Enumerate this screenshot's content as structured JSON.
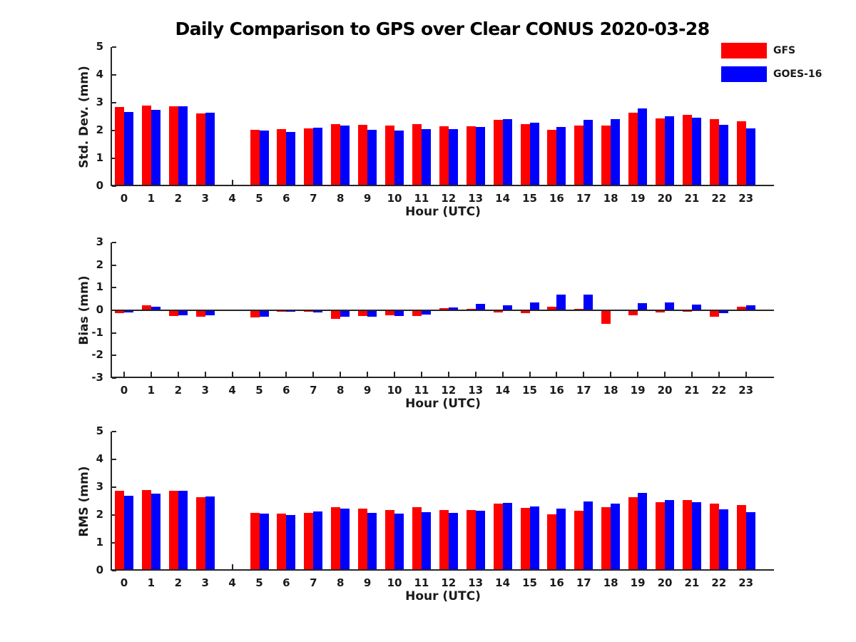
{
  "title": "Daily Comparison to GPS over Clear CONUS 2020-03-28",
  "legend": [
    {
      "label": "GFS",
      "color": "#ff0000"
    },
    {
      "label": "GOES-16",
      "color": "#0000ff"
    }
  ],
  "colors": {
    "axis": "#262626",
    "text": "#1a1a1a",
    "background": "#ffffff"
  },
  "chart_data": [
    {
      "type": "bar",
      "panel": "std_dev",
      "title": "",
      "xlabel": "Hour (UTC)",
      "ylabel": "Std. Dev. (mm)",
      "ylim": [
        0,
        5
      ],
      "yticks": [
        0,
        1,
        2,
        3,
        4,
        5
      ],
      "grid": false,
      "legend_position": "top-right",
      "categories": [
        0,
        1,
        2,
        3,
        4,
        5,
        6,
        7,
        8,
        9,
        10,
        11,
        12,
        13,
        14,
        15,
        16,
        17,
        18,
        19,
        20,
        21,
        22,
        23
      ],
      "series": [
        {
          "name": "GFS",
          "color": "#ff0000",
          "values": [
            2.85,
            2.9,
            2.87,
            2.61,
            null,
            2.03,
            2.04,
            2.08,
            2.24,
            2.2,
            2.18,
            2.24,
            2.16,
            2.16,
            2.38,
            2.24,
            2.02,
            2.18,
            2.18,
            2.63,
            2.43,
            2.56,
            2.41,
            2.34
          ]
        },
        {
          "name": "GOES-16",
          "color": "#0000ff",
          "values": [
            2.67,
            2.75,
            2.87,
            2.65,
            null,
            2.01,
            1.96,
            2.11,
            2.19,
            2.03,
            2.0,
            2.05,
            2.06,
            2.14,
            2.41,
            2.29,
            2.12,
            2.39,
            2.41,
            2.79,
            2.52,
            2.47,
            2.21,
            2.07
          ]
        }
      ]
    },
    {
      "type": "bar",
      "panel": "bias",
      "title": "",
      "xlabel": "Hour (UTC)",
      "ylabel": "Bias (mm)",
      "ylim": [
        -3,
        3
      ],
      "yticks": [
        -3,
        -2,
        -1,
        0,
        1,
        2,
        3
      ],
      "grid": false,
      "categories": [
        0,
        1,
        2,
        3,
        4,
        5,
        6,
        7,
        8,
        9,
        10,
        11,
        12,
        13,
        14,
        15,
        16,
        17,
        18,
        19,
        20,
        21,
        22,
        23
      ],
      "series": [
        {
          "name": "GFS",
          "color": "#ff0000",
          "values": [
            -0.12,
            0.21,
            -0.26,
            -0.28,
            null,
            -0.32,
            -0.07,
            -0.05,
            -0.37,
            -0.25,
            -0.23,
            -0.24,
            0.08,
            0.06,
            -0.1,
            -0.13,
            0.17,
            0.06,
            -0.6,
            -0.23,
            -0.08,
            -0.05,
            -0.28,
            0.15
          ]
        },
        {
          "name": "GOES-16",
          "color": "#0000ff",
          "values": [
            -0.08,
            0.16,
            -0.21,
            -0.22,
            null,
            -0.27,
            -0.06,
            -0.09,
            -0.28,
            -0.27,
            -0.26,
            -0.19,
            0.14,
            0.3,
            0.22,
            0.35,
            0.7,
            0.7,
            -0.03,
            0.33,
            0.35,
            0.24,
            -0.14,
            0.22
          ]
        }
      ]
    },
    {
      "type": "bar",
      "panel": "rms",
      "title": "",
      "xlabel": "Hour (UTC)",
      "ylabel": "RMS (mm)",
      "ylim": [
        0,
        5
      ],
      "yticks": [
        0,
        1,
        2,
        3,
        4,
        5
      ],
      "grid": false,
      "categories": [
        0,
        1,
        2,
        3,
        4,
        5,
        6,
        7,
        8,
        9,
        10,
        11,
        12,
        13,
        14,
        15,
        16,
        17,
        18,
        19,
        20,
        21,
        22,
        23
      ],
      "series": [
        {
          "name": "GFS",
          "color": "#ff0000",
          "values": [
            2.86,
            2.91,
            2.88,
            2.65,
            null,
            2.08,
            2.04,
            2.08,
            2.28,
            2.22,
            2.19,
            2.27,
            2.18,
            2.18,
            2.4,
            2.26,
            2.03,
            2.16,
            2.27,
            2.64,
            2.45,
            2.53,
            2.41,
            2.36
          ]
        },
        {
          "name": "GOES-16",
          "color": "#0000ff",
          "values": [
            2.7,
            2.77,
            2.88,
            2.67,
            null,
            2.05,
            1.99,
            2.14,
            2.23,
            2.08,
            2.05,
            2.09,
            2.07,
            2.16,
            2.43,
            2.31,
            2.22,
            2.48,
            2.4,
            2.8,
            2.54,
            2.47,
            2.21,
            2.1
          ]
        }
      ]
    }
  ]
}
